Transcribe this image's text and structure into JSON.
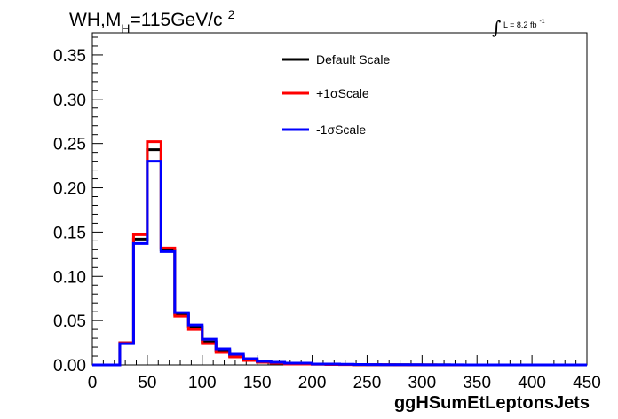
{
  "chart_data": {
    "type": "histogram",
    "title": {
      "prefix": "WH,M",
      "subscript": "H",
      "mass": "=115GeV/c",
      "superscript": "2"
    },
    "luminosity": {
      "integral_symbol": "∫",
      "text": "L = 8.2 fb",
      "superscript": "-1"
    },
    "xlabel": "ggHSumEtLeptonsJets",
    "ylabel": "",
    "xlim": [
      0,
      450
    ],
    "ylim": [
      0,
      0.375
    ],
    "x_ticks": [
      "0",
      "50",
      "100",
      "150",
      "200",
      "250",
      "300",
      "350",
      "400",
      "450"
    ],
    "y_ticks": [
      "0.00",
      "0.05",
      "0.10",
      "0.15",
      "0.20",
      "0.25",
      "0.30",
      "0.35"
    ],
    "bin_edges": [
      0,
      12.5,
      25,
      37.5,
      50,
      62.5,
      75,
      87.5,
      100,
      112.5,
      125,
      137.5,
      150,
      162.5,
      175,
      187.5,
      200,
      212.5,
      225,
      237.5,
      250,
      262.5,
      275,
      287.5,
      300,
      312.5,
      325,
      337.5,
      350,
      362.5,
      375,
      387.5,
      400,
      412.5,
      425,
      437.5,
      450
    ],
    "series": [
      {
        "name": "Default Scale",
        "color": "#000000",
        "values": [
          0,
          0,
          0.025,
          0.142,
          0.243,
          0.13,
          0.057,
          0.043,
          0.026,
          0.016,
          0.01,
          0.006,
          0.004,
          0.002,
          0.002,
          0.001,
          0.001,
          0.0005,
          0.0005,
          0.0003,
          0.0003,
          0.0002,
          0.0002,
          0.0001,
          0.0001,
          0.0001,
          0,
          0,
          0,
          0,
          0,
          0,
          0,
          0,
          0,
          0
        ]
      },
      {
        "name": "+1σScale",
        "color": "#ff0000",
        "values": [
          0,
          0,
          0.025,
          0.147,
          0.252,
          0.132,
          0.055,
          0.04,
          0.024,
          0.014,
          0.009,
          0.005,
          0.003,
          0.002,
          0.001,
          0.001,
          0.0008,
          0.0005,
          0.0004,
          0.0003,
          0.0002,
          0.0002,
          0.0001,
          0.0001,
          0.0001,
          0,
          0,
          0,
          0,
          0,
          0,
          0,
          0,
          0,
          0,
          0
        ]
      },
      {
        "name": "-1σScale",
        "color": "#0000ff",
        "values": [
          0,
          0,
          0.024,
          0.137,
          0.23,
          0.128,
          0.059,
          0.045,
          0.029,
          0.018,
          0.012,
          0.007,
          0.004,
          0.003,
          0.002,
          0.002,
          0.001,
          0.001,
          0.0008,
          0.0005,
          0.0004,
          0.0003,
          0.0002,
          0.0002,
          0.0001,
          0.0001,
          0.0001,
          0,
          0,
          0,
          0,
          0,
          0,
          0,
          0,
          0
        ]
      }
    ],
    "legend_placement": "top-center",
    "grid": false
  }
}
